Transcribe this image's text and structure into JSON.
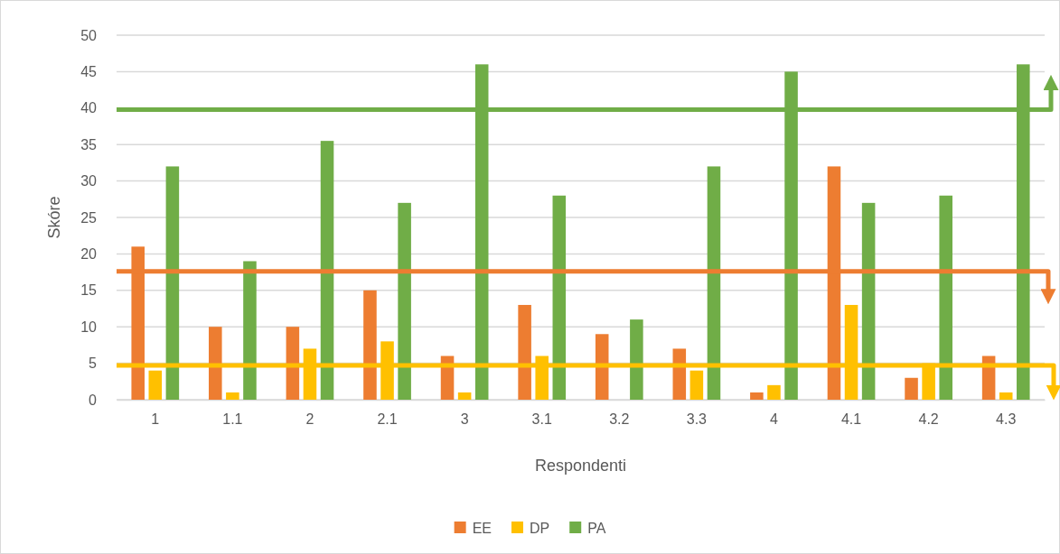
{
  "chart_data": {
    "type": "bar",
    "categories": [
      "1",
      "1.1",
      "2",
      "2.1",
      "3",
      "3.1",
      "3.2",
      "3.3",
      "4",
      "4.1",
      "4.2",
      "4.3"
    ],
    "series": [
      {
        "name": "EE",
        "color": "#ed7d31",
        "values": [
          21,
          10,
          10,
          15,
          6,
          13,
          9,
          7,
          1,
          32,
          3,
          6
        ]
      },
      {
        "name": "DP",
        "color": "#ffc000",
        "values": [
          4,
          1,
          7,
          8,
          1,
          6,
          0,
          4,
          2,
          13,
          5,
          1
        ]
      },
      {
        "name": "PA",
        "color": "#70ad47",
        "values": [
          32,
          19,
          35.5,
          27,
          46,
          28,
          11,
          32,
          45,
          27,
          28,
          46
        ]
      }
    ],
    "xlabel": "Respondenti",
    "ylabel": "Skóre",
    "ylim": [
      0,
      50
    ],
    "yticks": [
      0,
      5,
      10,
      15,
      20,
      25,
      30,
      35,
      40,
      45,
      50
    ],
    "grid": "y",
    "legend": "bottom",
    "ref_lines": [
      {
        "axis": "y",
        "value": 17.6,
        "color": "#ed7d31"
      },
      {
        "axis": "y",
        "value": 4.7,
        "color": "#ffc000"
      },
      {
        "axis": "y",
        "value": 39.8,
        "color": "#70ad47"
      }
    ]
  }
}
